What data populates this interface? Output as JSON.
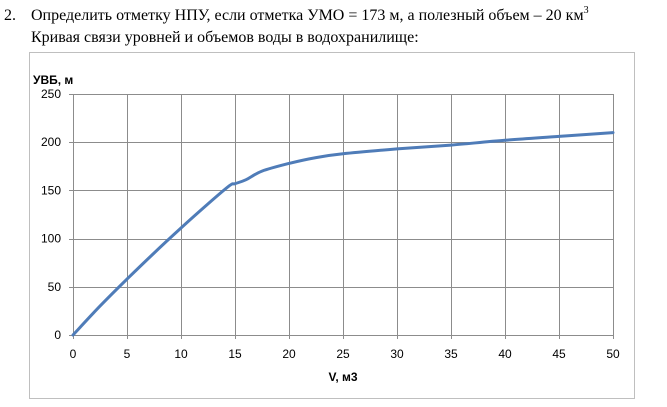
{
  "task": {
    "number": "2.",
    "line1_text": "Определить отметку НПУ, если отметка УМО = 173 м, а полезный объем – 20 км",
    "line1_sup": "3",
    "line2": "Кривая связи уровней и объемов воды в водохранилище:"
  },
  "chart_data": {
    "type": "line",
    "title": "",
    "xlabel": "V, м3",
    "ylabel": "УВБ, м",
    "xlim": [
      0,
      50
    ],
    "ylim": [
      0,
      250
    ],
    "xticks": [
      0,
      5,
      10,
      15,
      20,
      25,
      30,
      35,
      40,
      45,
      50
    ],
    "yticks": [
      0,
      50,
      100,
      150,
      200,
      250
    ],
    "grid": true,
    "line_color": "#4f7cb8",
    "series": [
      {
        "x": [
          0,
          2.5,
          5,
          7.5,
          10,
          12.5,
          14.5,
          15,
          16,
          17.5,
          20,
          22.5,
          25,
          30,
          35,
          40,
          45,
          50
        ],
        "values": [
          0,
          30,
          58,
          85,
          111,
          136,
          155,
          157,
          161,
          170,
          178,
          184,
          188,
          193,
          197,
          202,
          206,
          210
        ]
      }
    ]
  }
}
